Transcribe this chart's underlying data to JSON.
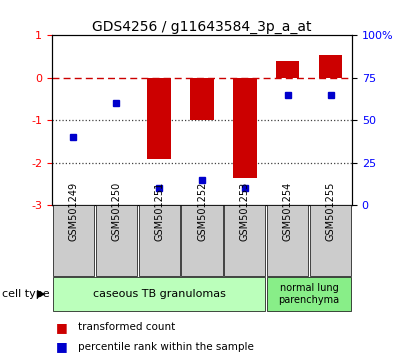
{
  "title": "GDS4256 / g11643584_3p_a_at",
  "samples": [
    "GSM501249",
    "GSM501250",
    "GSM501251",
    "GSM501252",
    "GSM501253",
    "GSM501254",
    "GSM501255"
  ],
  "red_values": [
    0.0,
    0.0,
    -1.9,
    -1.0,
    -2.35,
    0.4,
    0.55
  ],
  "blue_values_pct": [
    40,
    60,
    10,
    15,
    10,
    65,
    65
  ],
  "ylim_left": [
    -3,
    1
  ],
  "ylim_right": [
    0,
    100
  ],
  "yticks_left": [
    -3,
    -2,
    -1,
    0,
    1
  ],
  "yticks_right": [
    0,
    25,
    50,
    75,
    100
  ],
  "ytick_labels_right": [
    "0",
    "25",
    "50",
    "75",
    "100%"
  ],
  "red_color": "#cc0000",
  "blue_color": "#0000cc",
  "dotted_color": "#404040",
  "group1_label": "caseous TB granulomas",
  "group2_label": "normal lung\nparenchyma",
  "group1_color": "#bbffbb",
  "group2_color": "#88ee88",
  "cell_type_label": "cell type",
  "legend1_label": "transformed count",
  "legend2_label": "percentile rank within the sample",
  "bar_width": 0.55
}
